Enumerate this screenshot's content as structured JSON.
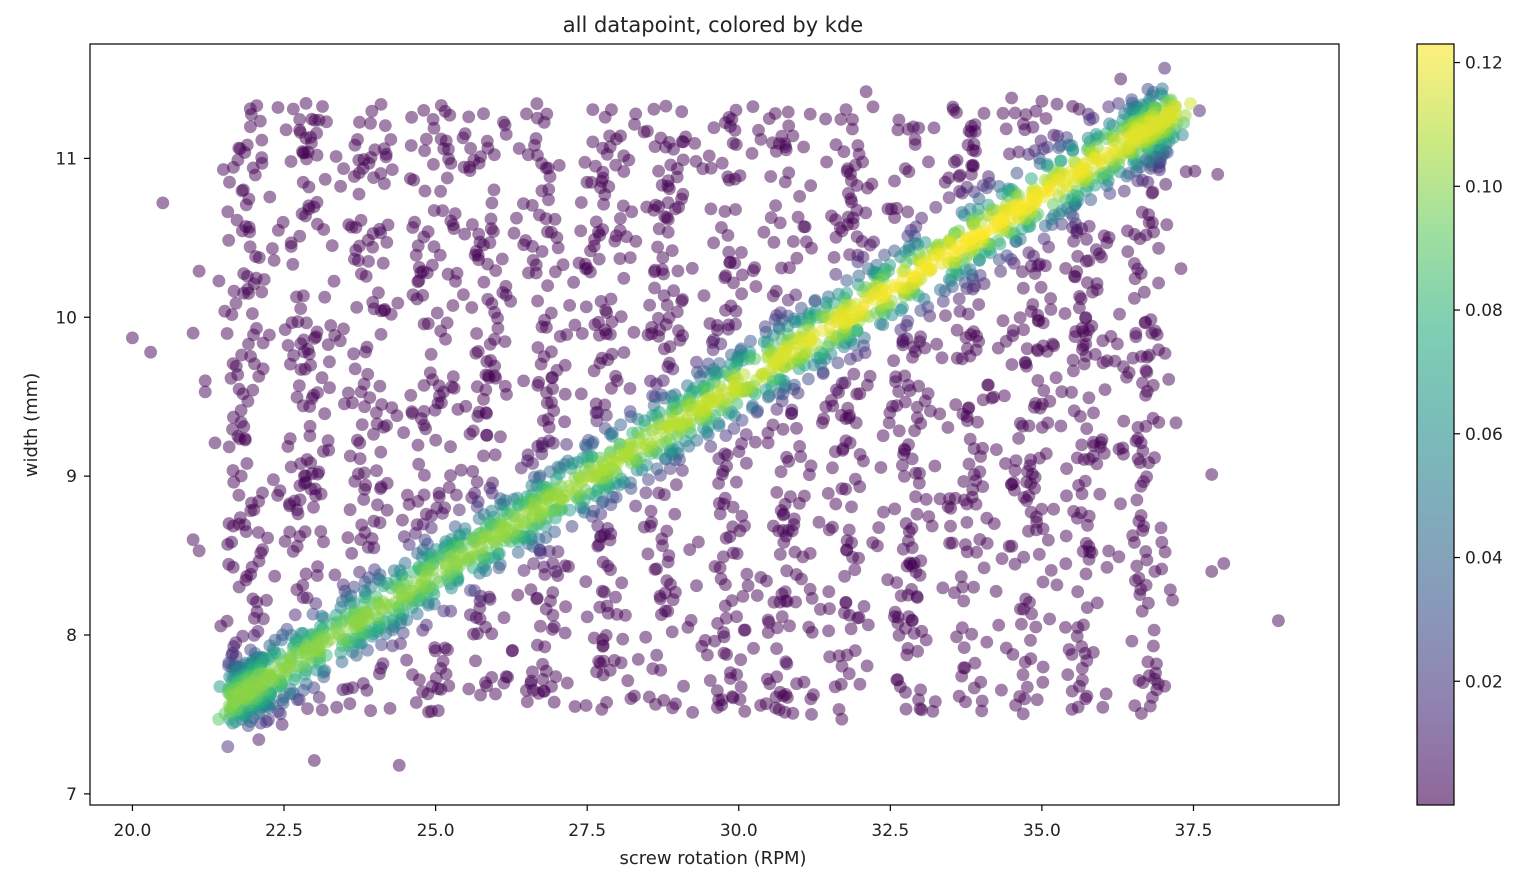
{
  "chart_data": {
    "type": "scatter",
    "title": "all datapoint, colored by kde",
    "xlabel": "screw rotation (RPM)",
    "ylabel": "width (mm)",
    "xlim": [
      19.3,
      39.9
    ],
    "ylim": [
      6.93,
      11.72
    ],
    "xticks": [
      20.0,
      22.5,
      25.0,
      27.5,
      30.0,
      32.5,
      35.0,
      37.5
    ],
    "xtick_labels": [
      "20.0",
      "22.5",
      "25.0",
      "27.5",
      "30.0",
      "32.5",
      "35.0",
      "37.5"
    ],
    "yticks": [
      7,
      8,
      9,
      10,
      11
    ],
    "ytick_labels": [
      "7",
      "8",
      "9",
      "10",
      "11"
    ],
    "grid": false,
    "colormap": "viridis",
    "alpha": 0.5,
    "colorbar": {
      "range": [
        0.0,
        0.123
      ],
      "ticks": [
        0.02,
        0.04,
        0.06,
        0.08,
        0.1,
        0.12
      ],
      "tick_labels": [
        "0.02",
        "0.04",
        "0.06",
        "0.08",
        "0.10",
        "0.12"
      ]
    },
    "rpm_columns": [
      21.9,
      22.9,
      23.9,
      24.9,
      25.8,
      26.8,
      27.8,
      28.8,
      29.8,
      30.8,
      31.8,
      32.8,
      33.8,
      34.8,
      35.7,
      36.7
    ],
    "trend": {
      "x_start": 21.9,
      "y_start": 7.65,
      "x_end": 36.8,
      "y_end": 11.2
    },
    "points": [
      [
        20.0,
        9.87
      ],
      [
        20.3,
        9.78
      ],
      [
        20.5,
        10.72
      ],
      [
        21.1,
        10.29
      ],
      [
        21.0,
        9.9
      ],
      [
        21.0,
        8.6
      ],
      [
        21.1,
        8.53
      ],
      [
        21.2,
        9.6
      ],
      [
        21.2,
        9.53
      ],
      [
        21.6,
        10.85
      ],
      [
        21.5,
        10.93
      ],
      [
        22.4,
        11.32
      ],
      [
        23.0,
        7.21
      ],
      [
        24.4,
        7.18
      ],
      [
        27.3,
        7.55
      ],
      [
        30.1,
        7.52
      ],
      [
        31.2,
        7.5
      ],
      [
        31.7,
        7.47
      ],
      [
        33.2,
        7.52
      ],
      [
        37.8,
        9.01
      ],
      [
        37.8,
        8.4
      ],
      [
        38.0,
        8.45
      ],
      [
        38.9,
        8.09
      ],
      [
        37.9,
        10.9
      ],
      [
        37.6,
        11.3
      ],
      [
        35.0,
        11.36
      ],
      [
        34.5,
        11.38
      ],
      [
        36.3,
        11.5
      ],
      [
        32.1,
        11.42
      ],
      [
        24.1,
        11.34
      ],
      [
        28.3,
        11.28
      ],
      [
        26.5,
        11.28
      ]
    ]
  }
}
